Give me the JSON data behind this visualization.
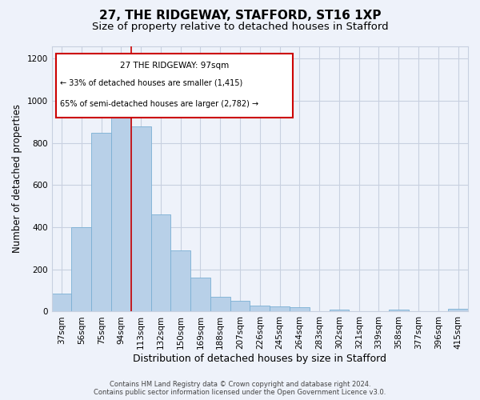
{
  "title1": "27, THE RIDGEWAY, STAFFORD, ST16 1XP",
  "title2": "Size of property relative to detached houses in Stafford",
  "xlabel": "Distribution of detached houses by size in Stafford",
  "ylabel": "Number of detached properties",
  "categories": [
    "37sqm",
    "56sqm",
    "75sqm",
    "94sqm",
    "113sqm",
    "132sqm",
    "150sqm",
    "169sqm",
    "188sqm",
    "207sqm",
    "226sqm",
    "245sqm",
    "264sqm",
    "283sqm",
    "302sqm",
    "321sqm",
    "339sqm",
    "358sqm",
    "377sqm",
    "396sqm",
    "415sqm"
  ],
  "values": [
    85,
    400,
    850,
    970,
    880,
    460,
    290,
    160,
    70,
    50,
    30,
    25,
    20,
    0,
    10,
    0,
    0,
    10,
    0,
    0,
    15
  ],
  "bar_color": "#b8d0e8",
  "bar_edge_color": "#7aafd4",
  "annotation_label": "27 THE RIDGEWAY: 97sqm",
  "annotation_line1": "← 33% of detached houses are smaller (1,415)",
  "annotation_line2": "65% of semi-detached houses are larger (2,782) →",
  "vline_color": "#cc0000",
  "vline_position": 3.5,
  "ylim": [
    0,
    1260
  ],
  "yticks": [
    0,
    200,
    400,
    600,
    800,
    1000,
    1200
  ],
  "box_color": "#cc0000",
  "footer_line1": "Contains HM Land Registry data © Crown copyright and database right 2024.",
  "footer_line2": "Contains public sector information licensed under the Open Government Licence v3.0.",
  "bg_color": "#eef2fa",
  "grid_color": "#c8d0e0",
  "title1_fontsize": 11,
  "title2_fontsize": 9.5,
  "xlabel_fontsize": 9,
  "ylabel_fontsize": 8.5,
  "tick_fontsize": 7.5,
  "annotation_fontsize": 7.5,
  "footer_fontsize": 6
}
